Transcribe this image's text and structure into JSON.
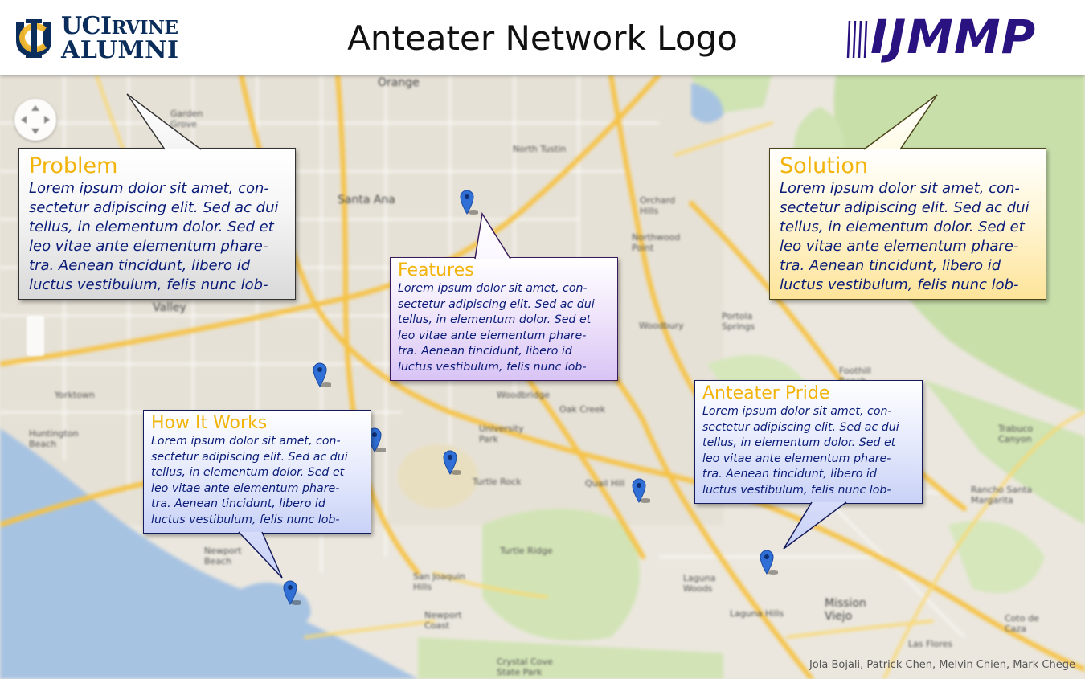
{
  "header": {
    "uci_logo": {
      "line1_main": "UCI",
      "line1_small": "RVINE",
      "line2": "ALUMNI"
    },
    "title": "Anteater Network Logo",
    "ijmmp_logo": "IJMMP"
  },
  "map": {
    "labels": {
      "orange": "Orange",
      "garden_grove": "Garden\nGrove",
      "santa_ana": "Santa Ana",
      "north_tustin": "North Tustin",
      "tustin": "Tustin",
      "orchard_hills": "Orchard\nHills",
      "northwood_point": "Northwood\nPoint",
      "woodbury": "Woodbury",
      "portola_springs": "Portola\nSprings",
      "foothill_ranch": "Foothill\nRanch",
      "huntington_beach": "Huntington\nBeach",
      "newport_beach": "Newport\nBeach",
      "university_park": "University\nPark",
      "turtle_rock": "Turtle Rock",
      "quail_hill": "Quail Hill",
      "turtle_ridge": "Turtle Ridge",
      "san_joaquin_hills": "San Joaquin\nHills",
      "laguna_woods": "Laguna\nWoods",
      "laguna_hills": "Laguna Hills",
      "mission_viejo": "Mission\nViejo",
      "newport_coast": "Newport\nCoast",
      "rancho_santa_margarita": "Rancho Santa\nMargarita",
      "trabuco_canyon": "Trabuco\nCanyon",
      "yorktown": "Yorktown",
      "oak_creek": "Oak Creek",
      "woodbridge": "Woodbridge",
      "crystal_cove": "Crystal Cove\nState Park",
      "las_flores": "Las Flores",
      "coto_de_caza": "Coto de\nCaza",
      "valley": "Valley"
    }
  },
  "callouts": {
    "problem": {
      "heading": "Problem",
      "body": "Lorem ipsum dolor sit amet, con-\nsectetur adipiscing elit. Sed ac dui\ntellus, in elementum dolor. Sed et\nleo vitae ante elementum phare-\ntra. Aenean tincidunt, libero id\nluctus vestibulum, felis nunc lob-"
    },
    "solution": {
      "heading": "Solution",
      "body": "Lorem ipsum dolor sit amet, con-\nsectetur adipiscing elit. Sed ac dui\ntellus, in elementum dolor. Sed et\nleo vitae ante elementum phare-\ntra. Aenean tincidunt, libero id\nluctus vestibulum, felis nunc lob-"
    },
    "features": {
      "heading": "Features",
      "body": "Lorem ipsum dolor sit amet, con-\nsectetur adipiscing elit. Sed ac dui\ntellus, in elementum dolor. Sed et\nleo vitae ante elementum phare-\ntra. Aenean tincidunt, libero id\nluctus vestibulum, felis nunc lob-"
    },
    "how_it_works": {
      "heading": "How It Works",
      "body": "Lorem ipsum dolor sit amet, con-\nsectetur adipiscing elit. Sed ac dui\ntellus, in elementum dolor. Sed et\nleo vitae ante elementum phare-\ntra. Aenean tincidunt, libero id\nluctus vestibulum, felis nunc lob-"
    },
    "anteater_pride": {
      "heading": "Anteater Pride",
      "body": "Lorem ipsum dolor sit amet, con-\nsectetur adipiscing elit. Sed ac dui\ntellus, in elementum dolor. Sed et\nleo vitae ante elementum phare-\ntra. Aenean tincidunt, libero id\nluctus vestibulum, felis nunc lob-"
    }
  },
  "credits": "Jola Bojali, Patrick Chen, Melvin Chien, Mark Chege",
  "colors": {
    "heading_gold": "#f2b40a",
    "body_navy": "#0a1c78",
    "uci_navy": "#0b2d5b",
    "uci_gold": "#f1b82d",
    "ijmmp_purple": "#2a1280",
    "pin_blue": "#2f6fd6",
    "ocean": "#a7c3e2",
    "park_green": "#c8dfa8",
    "freeway": "#f6c244"
  }
}
